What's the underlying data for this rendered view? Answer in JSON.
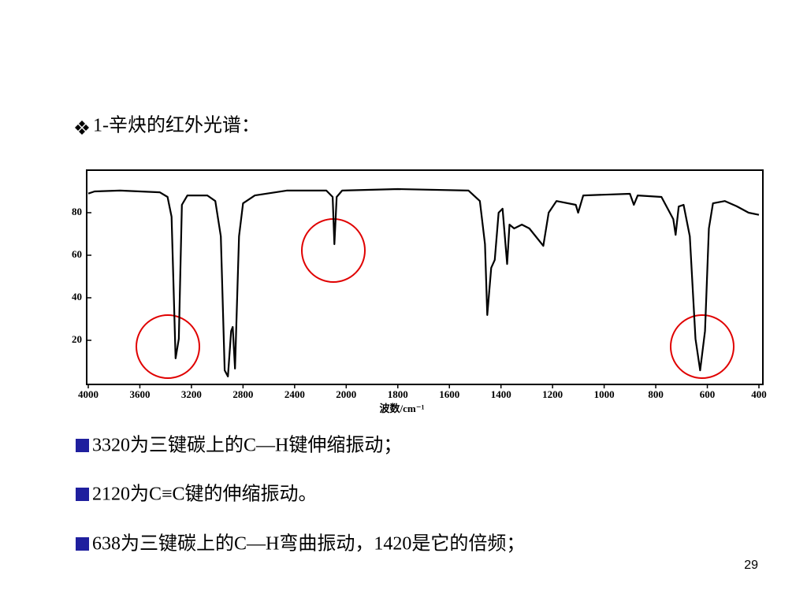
{
  "heading": "1-辛炔的红外光谱：",
  "chart_data": {
    "type": "line",
    "xlabel": "波数/cm⁻¹",
    "x": [
      4000,
      3951,
      3754,
      3446,
      3385,
      3354,
      3323,
      3298,
      3274,
      3231,
      3077,
      3015,
      2972,
      2942,
      2917,
      2892,
      2880,
      2862,
      2831,
      2800,
      2708,
      2462,
      2154,
      2105,
      2092,
      2074,
      2031,
      1800,
      1526,
      1482,
      1462,
      1453,
      1438,
      1424,
      1409,
      1394,
      1385,
      1376,
      1367,
      1349,
      1319,
      1290,
      1236,
      1215,
      1185,
      1110,
      1101,
      1081,
      900,
      885,
      870,
      778,
      732,
      723,
      711,
      692,
      668,
      646,
      628,
      609,
      594,
      578,
      532,
      486,
      440,
      400
    ],
    "values": [
      89,
      90,
      90.4,
      89.6,
      87.4,
      78.1,
      11.5,
      20.7,
      83.7,
      88.1,
      88.1,
      85.5,
      68.9,
      5.9,
      3,
      24.4,
      26.3,
      6.7,
      68.9,
      84.4,
      88.1,
      90.4,
      90.4,
      87.4,
      65.2,
      87.4,
      90.4,
      91.1,
      90.4,
      85.5,
      65.2,
      31.9,
      54.1,
      57.8,
      80,
      81.9,
      68.9,
      55.9,
      74.4,
      72.6,
      74.4,
      72.6,
      64.4,
      80,
      85.5,
      83.7,
      80,
      88.1,
      88.9,
      83.7,
      88.1,
      87.4,
      77,
      69.6,
      82.9,
      83.7,
      68.9,
      20.7,
      5.9,
      24.4,
      72.6,
      84.4,
      85.5,
      83,
      80,
      79
    ],
    "color": "#000000",
    "xlim": [
      4000,
      400
    ],
    "xticks": [
      4000,
      3600,
      3200,
      2800,
      2400,
      2000,
      1800,
      1600,
      1400,
      1200,
      1000,
      800,
      600,
      400
    ],
    "ylim": [
      0,
      100
    ],
    "yticks": [
      20,
      40,
      60,
      80
    ]
  },
  "bullets": [
    "3320为三键碳上的C—H键伸缩振动；",
    "2120为C≡C键的伸缩振动。",
    "638为三键碳上的C—H弯曲振动，1420是它的倍频；"
  ],
  "page_number": "29"
}
